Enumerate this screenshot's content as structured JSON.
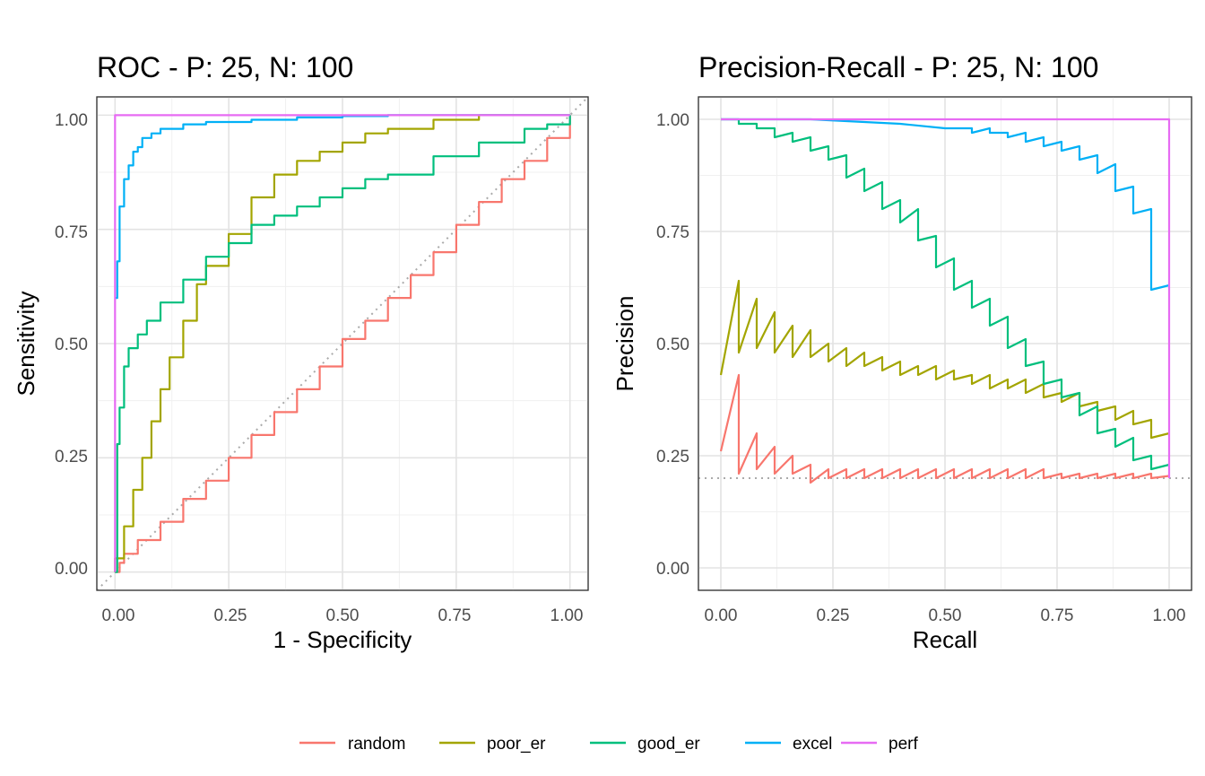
{
  "chart_data": [
    {
      "type": "line",
      "title": "ROC - P: 25, N: 100",
      "xlabel": "1 - Specificity",
      "ylabel": "Sensitivity",
      "xlim": [
        -0.04,
        1.04
      ],
      "ylim": [
        -0.04,
        1.04
      ],
      "x_ticks": [
        "0.00",
        "0.25",
        "0.50",
        "0.75",
        "1.00"
      ],
      "y_ticks": [
        "0.00",
        "0.25",
        "0.50",
        "0.75",
        "1.00"
      ],
      "grid": true,
      "reference_line": {
        "style": "dotted",
        "from": [
          0,
          0
        ],
        "to": [
          1,
          1
        ]
      },
      "series": [
        {
          "name": "random",
          "x": [
            0,
            0.01,
            0.02,
            0.05,
            0.1,
            0.15,
            0.2,
            0.25,
            0.3,
            0.35,
            0.4,
            0.45,
            0.5,
            0.55,
            0.6,
            0.65,
            0.7,
            0.75,
            0.8,
            0.85,
            0.9,
            0.95,
            1
          ],
          "y": [
            0,
            0.02,
            0.04,
            0.07,
            0.11,
            0.16,
            0.2,
            0.25,
            0.3,
            0.35,
            0.4,
            0.45,
            0.51,
            0.55,
            0.6,
            0.65,
            0.7,
            0.76,
            0.81,
            0.86,
            0.9,
            0.95,
            1
          ]
        },
        {
          "name": "poor_er",
          "x": [
            0,
            0,
            0.02,
            0.04,
            0.06,
            0.08,
            0.1,
            0.12,
            0.15,
            0.18,
            0.2,
            0.25,
            0.3,
            0.35,
            0.4,
            0.45,
            0.5,
            0.55,
            0.6,
            0.7,
            0.8,
            0.9,
            1
          ],
          "y": [
            0,
            0.03,
            0.1,
            0.18,
            0.25,
            0.33,
            0.4,
            0.47,
            0.55,
            0.63,
            0.67,
            0.74,
            0.82,
            0.87,
            0.9,
            0.92,
            0.94,
            0.96,
            0.97,
            0.99,
            1,
            1,
            1
          ]
        },
        {
          "name": "good_er",
          "x": [
            0,
            0.005,
            0.01,
            0.02,
            0.03,
            0.05,
            0.07,
            0.1,
            0.15,
            0.2,
            0.25,
            0.3,
            0.35,
            0.4,
            0.45,
            0.5,
            0.55,
            0.6,
            0.7,
            0.8,
            0.9,
            0.95,
            1
          ],
          "y": [
            0,
            0.28,
            0.36,
            0.45,
            0.49,
            0.52,
            0.55,
            0.59,
            0.64,
            0.69,
            0.72,
            0.76,
            0.78,
            0.8,
            0.82,
            0.84,
            0.86,
            0.87,
            0.91,
            0.94,
            0.97,
            0.98,
            1
          ]
        },
        {
          "name": "excel",
          "x": [
            0,
            0.005,
            0.01,
            0.02,
            0.03,
            0.04,
            0.05,
            0.06,
            0.08,
            0.1,
            0.15,
            0.2,
            0.3,
            0.4,
            0.5,
            0.6,
            0.8,
            1
          ],
          "y": [
            0.6,
            0.68,
            0.8,
            0.86,
            0.89,
            0.92,
            0.93,
            0.95,
            0.96,
            0.97,
            0.98,
            0.985,
            0.99,
            0.995,
            0.998,
            1,
            1,
            1
          ]
        },
        {
          "name": "perf",
          "x": [
            0,
            0,
            1
          ],
          "y": [
            0,
            1,
            1
          ]
        }
      ]
    },
    {
      "type": "line",
      "title": "Precision-Recall - P: 25, N: 100",
      "xlabel": "Recall",
      "ylabel": "Precision",
      "xlim": [
        -0.05,
        1.05
      ],
      "ylim": [
        -0.05,
        1.05
      ],
      "x_ticks": [
        "0.00",
        "0.25",
        "0.50",
        "0.75",
        "1.00"
      ],
      "y_ticks": [
        "0.00",
        "0.25",
        "0.50",
        "0.75",
        "1.00"
      ],
      "grid": true,
      "reference_line": {
        "style": "dotted",
        "y": 0.2
      },
      "series": [
        {
          "name": "random",
          "x": [
            0,
            0.04,
            0.04,
            0.08,
            0.08,
            0.12,
            0.12,
            0.16,
            0.16,
            0.2,
            0.2,
            0.24,
            0.24,
            0.28,
            0.28,
            0.32,
            0.32,
            0.36,
            0.36,
            0.4,
            0.4,
            0.44,
            0.44,
            0.48,
            0.48,
            0.52,
            0.52,
            0.56,
            0.56,
            0.6,
            0.6,
            0.64,
            0.64,
            0.68,
            0.68,
            0.72,
            0.72,
            0.76,
            0.76,
            0.8,
            0.8,
            0.84,
            0.84,
            0.88,
            0.88,
            0.92,
            0.92,
            0.96,
            0.96,
            1
          ],
          "y": [
            0.26,
            0.43,
            0.21,
            0.3,
            0.22,
            0.27,
            0.21,
            0.25,
            0.21,
            0.23,
            0.19,
            0.22,
            0.2,
            0.22,
            0.2,
            0.22,
            0.2,
            0.22,
            0.2,
            0.22,
            0.2,
            0.22,
            0.2,
            0.22,
            0.2,
            0.22,
            0.2,
            0.22,
            0.2,
            0.22,
            0.2,
            0.22,
            0.2,
            0.22,
            0.2,
            0.22,
            0.2,
            0.21,
            0.2,
            0.21,
            0.2,
            0.21,
            0.2,
            0.21,
            0.2,
            0.21,
            0.2,
            0.21,
            0.2,
            0.205
          ]
        },
        {
          "name": "poor_er",
          "x": [
            0,
            0.04,
            0.04,
            0.08,
            0.08,
            0.12,
            0.12,
            0.16,
            0.16,
            0.2,
            0.2,
            0.24,
            0.24,
            0.28,
            0.28,
            0.32,
            0.32,
            0.36,
            0.36,
            0.4,
            0.4,
            0.44,
            0.44,
            0.48,
            0.48,
            0.52,
            0.52,
            0.56,
            0.56,
            0.6,
            0.6,
            0.64,
            0.64,
            0.68,
            0.68,
            0.72,
            0.72,
            0.76,
            0.76,
            0.8,
            0.8,
            0.84,
            0.84,
            0.88,
            0.88,
            0.92,
            0.92,
            0.96,
            0.96,
            1
          ],
          "y": [
            0.43,
            0.64,
            0.48,
            0.6,
            0.49,
            0.57,
            0.48,
            0.54,
            0.47,
            0.53,
            0.47,
            0.5,
            0.46,
            0.49,
            0.45,
            0.48,
            0.45,
            0.47,
            0.44,
            0.46,
            0.43,
            0.45,
            0.43,
            0.45,
            0.42,
            0.44,
            0.42,
            0.43,
            0.41,
            0.43,
            0.4,
            0.42,
            0.4,
            0.42,
            0.39,
            0.41,
            0.38,
            0.39,
            0.37,
            0.39,
            0.36,
            0.37,
            0.35,
            0.36,
            0.33,
            0.35,
            0.32,
            0.33,
            0.29,
            0.3
          ]
        },
        {
          "name": "good_er",
          "x": [
            0,
            0.04,
            0.04,
            0.08,
            0.08,
            0.12,
            0.12,
            0.16,
            0.16,
            0.2,
            0.2,
            0.24,
            0.24,
            0.28,
            0.28,
            0.32,
            0.32,
            0.36,
            0.36,
            0.4,
            0.4,
            0.44,
            0.44,
            0.48,
            0.48,
            0.52,
            0.52,
            0.56,
            0.56,
            0.6,
            0.6,
            0.64,
            0.64,
            0.68,
            0.68,
            0.72,
            0.72,
            0.76,
            0.76,
            0.8,
            0.8,
            0.84,
            0.84,
            0.88,
            0.88,
            0.92,
            0.92,
            0.96,
            0.96,
            1
          ],
          "y": [
            1,
            1,
            0.99,
            0.99,
            0.98,
            0.98,
            0.96,
            0.97,
            0.95,
            0.96,
            0.93,
            0.94,
            0.91,
            0.92,
            0.87,
            0.89,
            0.84,
            0.86,
            0.8,
            0.82,
            0.77,
            0.8,
            0.73,
            0.74,
            0.67,
            0.69,
            0.62,
            0.64,
            0.58,
            0.6,
            0.54,
            0.56,
            0.49,
            0.51,
            0.45,
            0.46,
            0.41,
            0.42,
            0.38,
            0.39,
            0.34,
            0.36,
            0.3,
            0.31,
            0.27,
            0.29,
            0.24,
            0.25,
            0.22,
            0.23
          ]
        },
        {
          "name": "excel",
          "x": [
            0,
            0.2,
            0.4,
            0.5,
            0.52,
            0.56,
            0.56,
            0.6,
            0.6,
            0.64,
            0.64,
            0.68,
            0.68,
            0.72,
            0.72,
            0.76,
            0.76,
            0.8,
            0.8,
            0.84,
            0.84,
            0.88,
            0.88,
            0.92,
            0.92,
            0.96,
            0.96,
            1
          ],
          "y": [
            1,
            1,
            0.99,
            0.98,
            0.98,
            0.98,
            0.97,
            0.98,
            0.97,
            0.97,
            0.96,
            0.97,
            0.95,
            0.96,
            0.94,
            0.95,
            0.93,
            0.94,
            0.91,
            0.92,
            0.88,
            0.9,
            0.84,
            0.85,
            0.79,
            0.8,
            0.62,
            0.63
          ]
        },
        {
          "name": "perf",
          "x": [
            0,
            1,
            1
          ],
          "y": [
            1,
            1,
            0.2
          ]
        }
      ]
    }
  ],
  "legend": {
    "position": "bottom",
    "items": [
      {
        "name": "random",
        "color": "#F8766D"
      },
      {
        "name": "poor_er",
        "color": "#A3A500"
      },
      {
        "name": "good_er",
        "color": "#00BF7D"
      },
      {
        "name": "excel",
        "color": "#00B0F6"
      },
      {
        "name": "perf",
        "color": "#E76BF3"
      }
    ]
  }
}
